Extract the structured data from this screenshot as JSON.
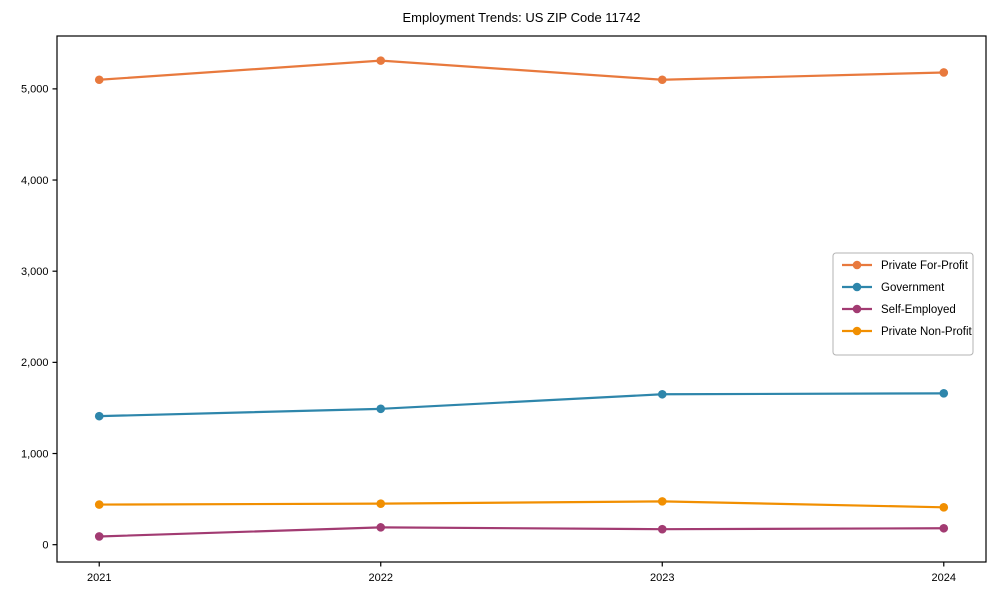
{
  "title": "Employment Trends: US ZIP Code 11742",
  "chart_data": {
    "type": "line",
    "title": "Employment Trends: US ZIP Code 11742",
    "x": [
      2021,
      2022,
      2023,
      2024
    ],
    "x_tick_labels": [
      "2021",
      "2022",
      "2023",
      "2024"
    ],
    "series": [
      {
        "name": "Private For-Profit",
        "color": "#E8793D",
        "values": [
          5100,
          5310,
          5100,
          5180
        ]
      },
      {
        "name": "Government",
        "color": "#2E86AB",
        "values": [
          1410,
          1490,
          1650,
          1660
        ]
      },
      {
        "name": "Self-Employed",
        "color": "#A23B72",
        "values": [
          90,
          190,
          170,
          180
        ]
      },
      {
        "name": "Private Non-Profit",
        "color": "#F18F01",
        "values": [
          440,
          450,
          475,
          410
        ]
      }
    ],
    "xlabel": "",
    "ylabel": "",
    "xlim": [
      2020.85,
      2024.15
    ],
    "ylim": [
      -190,
      5580
    ],
    "yticks": [
      0,
      1000,
      2000,
      3000,
      4000,
      5000
    ],
    "ytick_labels": [
      "0",
      "1,000",
      "2,000",
      "3,000",
      "4,000",
      "5,000"
    ],
    "grid": false,
    "marker": "circle",
    "legend": {
      "position": "center-right",
      "border_color": "#b3b3b3",
      "background": "#ffffff"
    },
    "axis_color": "#000000"
  }
}
